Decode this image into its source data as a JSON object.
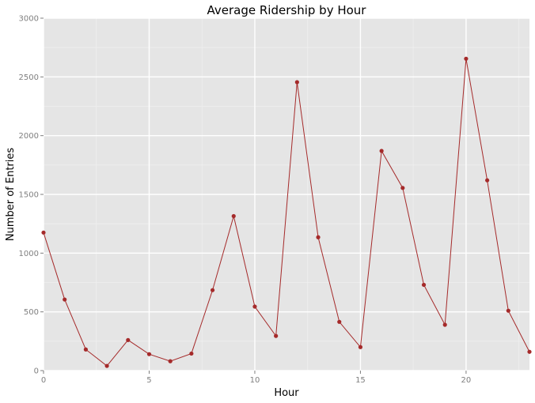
{
  "chart_data": {
    "type": "line",
    "title": "Average Ridership by Hour",
    "xlabel": "Hour",
    "ylabel": "Number of Entries",
    "xlim": [
      0,
      23
    ],
    "ylim": [
      0,
      3000
    ],
    "x_ticks": [
      0,
      5,
      10,
      15,
      20
    ],
    "y_ticks": [
      0,
      500,
      1000,
      1500,
      2000,
      2500,
      3000
    ],
    "grid": true,
    "legend": "none",
    "series": [
      {
        "x": [
          0,
          1,
          2,
          3,
          4,
          5,
          6,
          7,
          8,
          9,
          10,
          11,
          12,
          13,
          14,
          15,
          16,
          17,
          18,
          19,
          20,
          21,
          22,
          23
        ],
        "values": [
          1175,
          605,
          180,
          40,
          260,
          140,
          80,
          145,
          685,
          1315,
          545,
          295,
          2455,
          1135,
          415,
          200,
          1870,
          1555,
          730,
          390,
          2655,
          1620,
          510,
          160
        ],
        "color": "#a52a2a",
        "markers": true
      }
    ]
  },
  "colors": {
    "panel_background": "#e5e5e5",
    "grid_major": "#ffffff",
    "grid_minor": "#efefef",
    "series": "#a52a2a"
  }
}
